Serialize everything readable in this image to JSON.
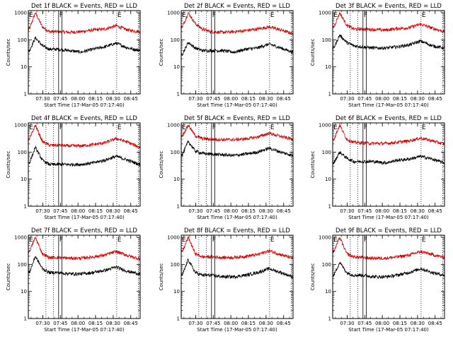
{
  "chart_data": {
    "type": "line",
    "layout": "3x3 grid of small multiples",
    "xlabel": "Start Time (17-Mar-05 07:17:40)",
    "ylabel": "Counts/sec",
    "x_ticks": [
      "07:30",
      "07:45",
      "08:00",
      "08:15",
      "08:30",
      "08:45"
    ],
    "x_range": [
      "07:17:40",
      "08:53:00"
    ],
    "y_scale": "log",
    "y_ticks": [
      "1",
      "10",
      "100",
      "1000"
    ],
    "ylim": [
      1,
      1200
    ],
    "grid": false,
    "colors": {
      "events": "#000000",
      "lld": "#dd0000",
      "axes": "#000000"
    },
    "markers": [
      {
        "label": "E",
        "time": "07:17:45",
        "style": "solid"
      },
      {
        "label": "F",
        "time": "07:43:30",
        "style": "solid"
      },
      {
        "label": "",
        "time": "07:46:20",
        "style": "solid"
      },
      {
        "label": "",
        "time": "07:32:40",
        "style": "dotted"
      },
      {
        "label": "",
        "time": "07:39:00",
        "style": "dotted"
      },
      {
        "label": "E",
        "time": "08:33:00",
        "style": "dotted"
      },
      {
        "label": "",
        "time": "08:51:30",
        "style": "dotted"
      }
    ],
    "panels": [
      {
        "title": "Det 1f BLACK = Events, RED = LLD",
        "series": [
          {
            "name": "Events",
            "x_min": [
              1,
              6,
              12,
              18,
              25,
              35,
              45,
              55,
              65,
              75,
              85,
              95
            ],
            "values": [
              40,
              120,
              60,
              45,
              45,
              40,
              35,
              45,
              55,
              75,
              50,
              40
            ]
          },
          {
            "name": "LLD",
            "x_min": [
              1,
              6,
              12,
              18,
              25,
              35,
              45,
              55,
              65,
              75,
              85,
              95
            ],
            "values": [
              250,
              1000,
              300,
              200,
              200,
              190,
              200,
              230,
              250,
              330,
              230,
              200
            ]
          }
        ]
      },
      {
        "title": "Det 2f BLACK = Events, RED = LLD",
        "series": [
          {
            "name": "Events",
            "x_min": [
              1,
              6,
              12,
              18,
              25,
              35,
              45,
              55,
              65,
              75,
              85,
              95
            ],
            "values": [
              30,
              80,
              50,
              40,
              40,
              40,
              35,
              45,
              50,
              70,
              50,
              35
            ]
          },
          {
            "name": "LLD",
            "x_min": [
              1,
              6,
              12,
              18,
              25,
              35,
              45,
              55,
              65,
              75,
              85,
              95
            ],
            "values": [
              300,
              1000,
              400,
              250,
              200,
              190,
              200,
              220,
              250,
              300,
              230,
              170
            ]
          }
        ]
      },
      {
        "title": "Det 3f BLACK = Events, RED = LLD",
        "series": [
          {
            "name": "Events",
            "x_min": [
              1,
              6,
              12,
              18,
              25,
              35,
              45,
              55,
              65,
              75,
              85,
              95
            ],
            "values": [
              50,
              150,
              80,
              60,
              55,
              50,
              50,
              55,
              65,
              90,
              60,
              50
            ]
          },
          {
            "name": "LLD",
            "x_min": [
              1,
              6,
              12,
              18,
              25,
              35,
              45,
              55,
              65,
              75,
              85,
              95
            ],
            "values": [
              300,
              1000,
              350,
              250,
              250,
              240,
              230,
              260,
              280,
              380,
              270,
              200
            ]
          }
        ]
      },
      {
        "title": "Det 4f BLACK = Events, RED = LLD",
        "series": [
          {
            "name": "Events",
            "x_min": [
              1,
              6,
              12,
              18,
              25,
              35,
              45,
              55,
              65,
              75,
              85,
              95
            ],
            "values": [
              40,
              150,
              50,
              35,
              35,
              35,
              35,
              40,
              50,
              70,
              50,
              35
            ]
          },
          {
            "name": "LLD",
            "x_min": [
              1,
              6,
              12,
              18,
              25,
              35,
              45,
              55,
              65,
              75,
              85,
              95
            ],
            "values": [
              300,
              1000,
              250,
              180,
              180,
              170,
              170,
              190,
              220,
              320,
              230,
              150
            ]
          }
        ]
      },
      {
        "title": "Det 5f BLACK = Events, RED = LLD",
        "series": [
          {
            "name": "Events",
            "x_min": [
              1,
              6,
              12,
              18,
              25,
              35,
              45,
              55,
              65,
              75,
              85,
              95
            ],
            "values": [
              80,
              250,
              110,
              90,
              85,
              80,
              75,
              85,
              100,
              140,
              100,
              75
            ]
          },
          {
            "name": "LLD",
            "x_min": [
              1,
              6,
              12,
              18,
              25,
              35,
              45,
              55,
              65,
              75,
              85,
              95
            ],
            "values": [
              400,
              1000,
              400,
              320,
              300,
              290,
              290,
              310,
              360,
              500,
              380,
              300
            ]
          }
        ]
      },
      {
        "title": "Det 6f BLACK = Events, RED = LLD",
        "series": [
          {
            "name": "Events",
            "x_min": [
              1,
              6,
              12,
              18,
              25,
              35,
              45,
              55,
              65,
              75,
              85,
              95
            ],
            "values": [
              40,
              100,
              60,
              45,
              45,
              45,
              40,
              50,
              55,
              70,
              55,
              40
            ]
          },
          {
            "name": "LLD",
            "x_min": [
              1,
              6,
              12,
              18,
              25,
              35,
              45,
              55,
              65,
              75,
              85,
              95
            ],
            "values": [
              300,
              1000,
              300,
              230,
              220,
              210,
              210,
              230,
              260,
              330,
              260,
              200
            ]
          }
        ]
      },
      {
        "title": "Det 7f BLACK = Events, RED = LLD",
        "series": [
          {
            "name": "Events",
            "x_min": [
              1,
              6,
              12,
              18,
              25,
              35,
              45,
              55,
              65,
              75,
              85,
              95
            ],
            "values": [
              50,
              200,
              70,
              50,
              50,
              45,
              45,
              50,
              60,
              80,
              55,
              45
            ]
          },
          {
            "name": "LLD",
            "x_min": [
              1,
              6,
              12,
              18,
              25,
              35,
              45,
              55,
              65,
              75,
              85,
              95
            ],
            "values": [
              300,
              1000,
              250,
              180,
              180,
              170,
              170,
              190,
              220,
              300,
              210,
              160
            ]
          }
        ]
      },
      {
        "title": "Det 8f BLACK = Events, RED = LLD",
        "series": [
          {
            "name": "Events",
            "x_min": [
              1,
              6,
              12,
              18,
              25,
              35,
              45,
              55,
              65,
              75,
              85,
              95
            ],
            "values": [
              40,
              150,
              50,
              40,
              40,
              35,
              35,
              40,
              50,
              70,
              50,
              35
            ]
          },
          {
            "name": "LLD",
            "x_min": [
              1,
              6,
              12,
              18,
              25,
              35,
              45,
              55,
              65,
              75,
              85,
              95
            ],
            "values": [
              300,
              1000,
              250,
              190,
              190,
              180,
              180,
              200,
              230,
              320,
              230,
              170
            ]
          }
        ]
      },
      {
        "title": "Det 9f BLACK = Events, RED = LLD",
        "series": [
          {
            "name": "Events",
            "x_min": [
              1,
              6,
              12,
              18,
              25,
              35,
              45,
              55,
              65,
              75,
              85,
              95
            ],
            "values": [
              40,
              120,
              50,
              40,
              40,
              35,
              35,
              40,
              50,
              70,
              50,
              40
            ]
          },
          {
            "name": "LLD",
            "x_min": [
              1,
              6,
              12,
              18,
              25,
              35,
              45,
              55,
              65,
              75,
              85,
              95
            ],
            "values": [
              300,
              1000,
              250,
              190,
              180,
              170,
              170,
              190,
              220,
              300,
              230,
              180
            ]
          }
        ]
      }
    ]
  }
}
